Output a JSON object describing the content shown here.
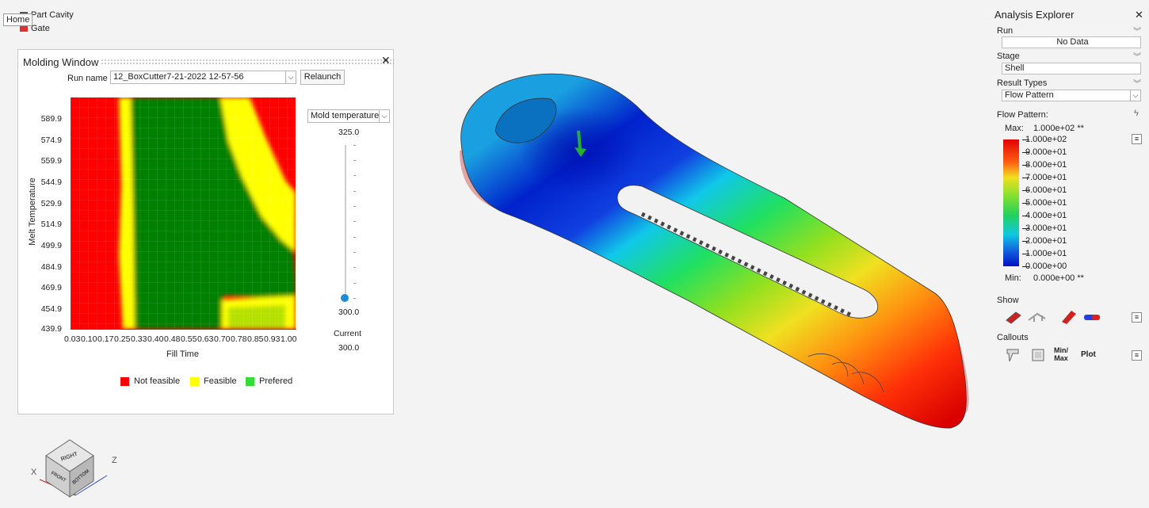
{
  "tooltip": "Home",
  "top_legend": [
    {
      "label": "Part Cavity",
      "color": "#555555"
    },
    {
      "label": "Gate",
      "color": "#e03030"
    }
  ],
  "molding_window": {
    "title": "Molding Window",
    "run_name_label": "Run name",
    "run_name_value": "12_BoxCutter7-21-2022 12-57-56",
    "relaunch_label": "Relaunch",
    "y_axis_label": "Melt Temperature",
    "x_axis_label": "Fill Time",
    "y_ticks": [
      "589.9",
      "574.9",
      "559.9",
      "544.9",
      "529.9",
      "514.9",
      "499.9",
      "484.9",
      "469.9",
      "454.9",
      "439.9"
    ],
    "x_ticks": [
      "0.03",
      "0.10",
      "0.17",
      "0.25",
      "0.33",
      "0.40",
      "0.48",
      "0.55",
      "0.63",
      "0.70",
      "0.78",
      "0.85",
      "0.93",
      "1.00"
    ],
    "legend": [
      {
        "label": "Not feasible",
        "color": "#ff0000"
      },
      {
        "label": "Feasible",
        "color": "#ffff00"
      },
      {
        "label": "Prefered",
        "color": "#33dd33"
      }
    ],
    "param_select": "Mold temperature",
    "slider_max": "325.0",
    "slider_min": "300.0",
    "current_label": "Current",
    "current_value": "300.0",
    "current_fraction": 0.0
  },
  "analysis_explorer": {
    "title": "Analysis Explorer",
    "run_label": "Run",
    "run_value": "No Data",
    "stage_label": "Stage",
    "stage_value": "Shell",
    "result_types_label": "Result Types",
    "result_type_value": "Flow Pattern",
    "flow_label": "Flow Pattern:",
    "max_label": "Max:",
    "max_value": "1.000e+02 **",
    "min_label": "Min:",
    "min_value": "0.000e+00 **",
    "scale": [
      "1.000e+02",
      "9.000e+01",
      "8.000e+01",
      "7.000e+01",
      "6.000e+01",
      "5.000e+01",
      "4.000e+01",
      "3.000e+01",
      "2.000e+01",
      "1.000e+01",
      "0.000e+00"
    ],
    "show_label": "Show",
    "callouts_label": "Callouts",
    "callout_minmax": "Min/\nMax",
    "callout_minmax_1": "Min/",
    "callout_minmax_2": "Max",
    "callout_plot": "Plot"
  },
  "view_cube": {
    "faces": [
      "RIGHT",
      "FRONT",
      "BOTTOM"
    ],
    "axis_x": "X",
    "axis_z": "Z"
  }
}
